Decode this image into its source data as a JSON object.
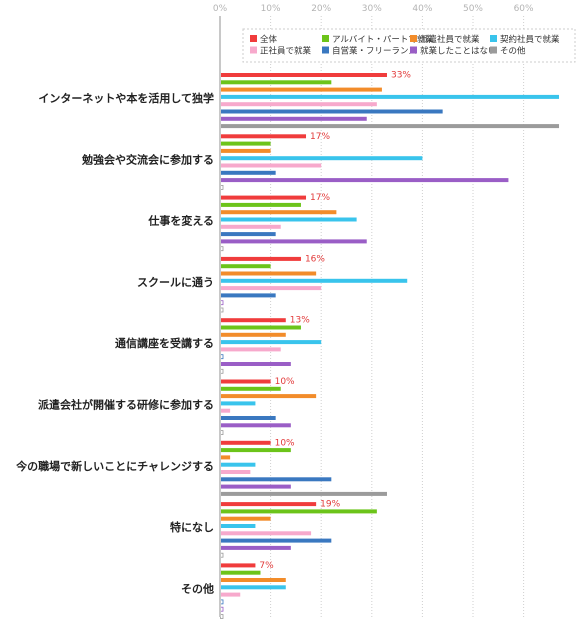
{
  "chart_data": {
    "type": "bar",
    "orientation": "horizontal",
    "title": "",
    "xlabel": "",
    "ylabel": "",
    "xlim": [
      0,
      70
    ],
    "x_ticks": [
      "0%",
      "10%",
      "20%",
      "30%",
      "40%",
      "50%",
      "60%"
    ],
    "grid": true,
    "legend_position": "top-right",
    "categories": [
      "インターネットや本を活用して独学",
      "勉強会や交流会に参加する",
      "仕事を変える",
      "スクールに通う",
      "通信講座を受講する",
      "派遣会社が開催する研修に参加する",
      "今の職場で新しいことにチャレンジする",
      "特になし",
      "その他"
    ],
    "series": [
      {
        "name": "全体",
        "color": "#f03c3c",
        "values": [
          33,
          17,
          17,
          16,
          13,
          10,
          10,
          19,
          7
        ],
        "data_labels": [
          "33%",
          "17%",
          "17%",
          "16%",
          "13%",
          "10%",
          "10%",
          "19%",
          "7%"
        ]
      },
      {
        "name": "アルバイト・パートで就業",
        "color": "#6cc41a",
        "values": [
          22,
          10,
          16,
          10,
          16,
          12,
          14,
          31,
          8
        ]
      },
      {
        "name": "派遣社員で就業",
        "color": "#f28c2a",
        "values": [
          32,
          10,
          23,
          19,
          13,
          19,
          2,
          10,
          13
        ]
      },
      {
        "name": "契約社員で就業",
        "color": "#39c4ec",
        "values": [
          67,
          40,
          27,
          37,
          20,
          7,
          7,
          7,
          13
        ]
      },
      {
        "name": "正社員で就業",
        "color": "#f7a9cc",
        "values": [
          31,
          20,
          12,
          20,
          12,
          2,
          6,
          18,
          4
        ]
      },
      {
        "name": "自営業・フリーランス",
        "color": "#3a78c0",
        "values": [
          44,
          11,
          11,
          11,
          0.5,
          11,
          22,
          22,
          0.5
        ]
      },
      {
        "name": "就業したことはない",
        "color": "#9a5ec6",
        "values": [
          29,
          57,
          29,
          0.5,
          14,
          14,
          14,
          14,
          0.5
        ]
      },
      {
        "name": "その他",
        "color": "#9b9b9b",
        "values": [
          67,
          0.5,
          0.5,
          0.5,
          0.5,
          0.5,
          33,
          0.5,
          0.5
        ]
      }
    ]
  }
}
